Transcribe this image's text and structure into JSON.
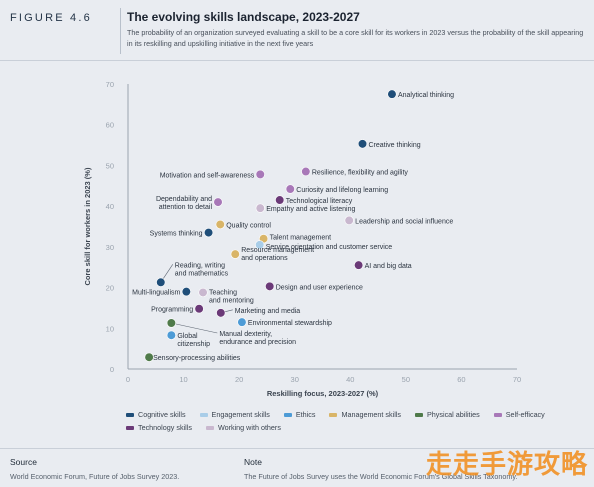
{
  "header": {
    "figure_label": "FIGURE 4.6",
    "title": "The evolving skills landscape, 2023-2027",
    "subtitle": "The probability of an organization surveyed evaluating a skill to be a core skill for its workers in 2023 versus the probability of the skill appearing in its reskilling and upskilling initiative in the next five years"
  },
  "chart_data": {
    "type": "scatter",
    "xlabel": "Reskilling focus, 2023-2027 (%)",
    "ylabel": "Core skill for workers in 2023 (%)",
    "xlim": [
      0,
      70
    ],
    "ylim": [
      0,
      70
    ],
    "xticks": [
      0,
      10,
      20,
      30,
      40,
      50,
      60,
      70
    ],
    "yticks": [
      0,
      10,
      20,
      30,
      40,
      50,
      60,
      70
    ],
    "grid": false,
    "categories": [
      {
        "key": "cognitive",
        "name": "Cognitive skills",
        "color": "#1f4e79"
      },
      {
        "key": "engagement",
        "name": "Engagement skills",
        "color": "#a9cde8"
      },
      {
        "key": "ethics",
        "name": "Ethics",
        "color": "#4d9bd6"
      },
      {
        "key": "management",
        "name": "Management skills",
        "color": "#d9b568"
      },
      {
        "key": "physical",
        "name": "Physical abilities",
        "color": "#4f7a4a"
      },
      {
        "key": "selfefficacy",
        "name": "Self-efficacy",
        "color": "#a878b8"
      },
      {
        "key": "technology",
        "name": "Technology skills",
        "color": "#6b3a78"
      },
      {
        "key": "workingothers",
        "name": "Working with others",
        "color": "#c9b8cf"
      }
    ],
    "points": [
      {
        "label": "Analytical thinking",
        "x": 47.5,
        "y": 67.5,
        "cat": "cognitive"
      },
      {
        "label": "Creative thinking",
        "x": 42.2,
        "y": 55.3,
        "cat": "cognitive"
      },
      {
        "label": "Resilience, flexibility and agility",
        "x": 32.0,
        "y": 48.5,
        "cat": "selfefficacy"
      },
      {
        "label": "Motivation and self-awareness",
        "x": 23.8,
        "y": 47.8,
        "cat": "selfefficacy"
      },
      {
        "label": "Curiosity and lifelong learning",
        "x": 29.2,
        "y": 44.2,
        "cat": "selfefficacy"
      },
      {
        "label": "Technological literacy",
        "x": 27.3,
        "y": 41.5,
        "cat": "technology"
      },
      {
        "label": "Empathy and active listening",
        "x": 23.8,
        "y": 39.5,
        "cat": "workingothers"
      },
      {
        "label": "Dependability and attention to detail",
        "x": 16.2,
        "y": 41.0,
        "cat": "selfefficacy"
      },
      {
        "label": "Leadership and social influence",
        "x": 39.8,
        "y": 36.5,
        "cat": "workingothers"
      },
      {
        "label": "Quality control",
        "x": 16.6,
        "y": 35.5,
        "cat": "management"
      },
      {
        "label": "Systems thinking",
        "x": 14.5,
        "y": 33.5,
        "cat": "cognitive"
      },
      {
        "label": "Talent management",
        "x": 24.4,
        "y": 32.0,
        "cat": "management"
      },
      {
        "label": "Service orientation and customer service",
        "x": 23.7,
        "y": 30.5,
        "cat": "engagement"
      },
      {
        "label": "Resource management and operations",
        "x": 19.3,
        "y": 28.2,
        "cat": "management"
      },
      {
        "label": "AI and big data",
        "x": 41.5,
        "y": 25.5,
        "cat": "technology"
      },
      {
        "label": "Reading, writing and mathematics",
        "x": 5.9,
        "y": 21.3,
        "cat": "cognitive"
      },
      {
        "label": "Design and user experience",
        "x": 25.5,
        "y": 20.3,
        "cat": "technology"
      },
      {
        "label": "Multi-lingualism",
        "x": 10.5,
        "y": 19.0,
        "cat": "cognitive"
      },
      {
        "label": "Teaching and mentoring",
        "x": 13.5,
        "y": 18.8,
        "cat": "workingothers"
      },
      {
        "label": "Programming",
        "x": 12.8,
        "y": 14.8,
        "cat": "technology"
      },
      {
        "label": "Marketing and media",
        "x": 16.7,
        "y": 13.8,
        "cat": "technology"
      },
      {
        "label": "Environmental stewardship",
        "x": 20.5,
        "y": 11.5,
        "cat": "ethics"
      },
      {
        "label": "Manual dexterity, endurance and precision",
        "x": 7.8,
        "y": 11.3,
        "cat": "physical"
      },
      {
        "label": "Global citizenship",
        "x": 7.8,
        "y": 8.3,
        "cat": "ethics"
      },
      {
        "label": "Sensory-processing abilities",
        "x": 3.8,
        "y": 2.9,
        "cat": "physical"
      }
    ]
  },
  "legend": {
    "row1": [
      "Cognitive skills",
      "Engagement skills",
      "Ethics",
      "Management skills",
      "Physical abilities",
      "Self-efficacy"
    ],
    "row2": [
      "Technology skills",
      "Working with others"
    ]
  },
  "footer": {
    "source_heading": "Source",
    "source_text": "World Economic Forum, Future of Jobs Survey 2023.",
    "note_heading": "Note",
    "note_text": "The Future of Jobs Survey uses the World Economic Forum's Global Skills Taxonomy."
  },
  "watermark": "走走手游攻略"
}
